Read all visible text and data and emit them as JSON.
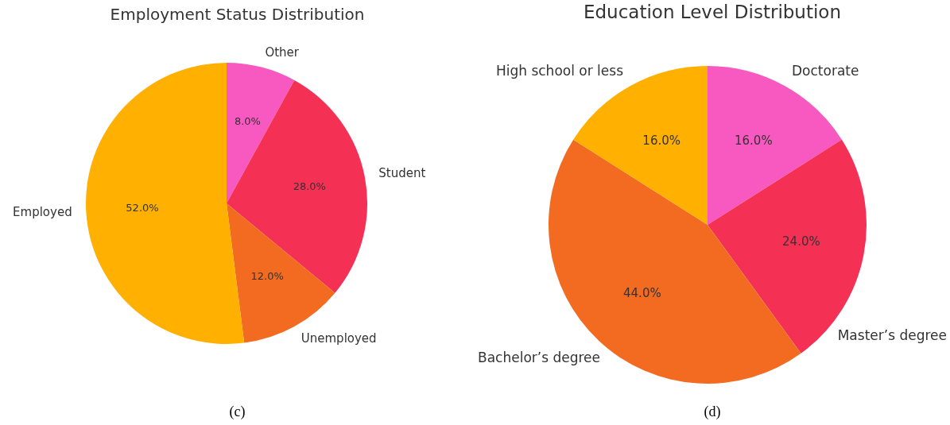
{
  "chart_data": [
    {
      "type": "pie",
      "title": "Employment Status Distribution",
      "categories": [
        "Other",
        "Student",
        "Unemployed",
        "Employed"
      ],
      "values": [
        8,
        28,
        12,
        52
      ],
      "colors": [
        "#f859c0",
        "#f43154",
        "#f26b21",
        "#ffb000"
      ],
      "value_labels": [
        "8.0%",
        "28.0%",
        "12.0%",
        "52.0%"
      ],
      "annotations": [
        "(c)"
      ]
    },
    {
      "type": "pie",
      "title": "Education Level Distribution",
      "categories": [
        "Doctorate",
        "Master’s degree",
        "Bachelor’s degree",
        "High school or less"
      ],
      "values": [
        16,
        24,
        44,
        16
      ],
      "colors": [
        "#f859c0",
        "#f43154",
        "#f26b21",
        "#ffb000"
      ],
      "value_labels": [
        "16.0%",
        "24.0%",
        "44.0%",
        "16.0%"
      ],
      "annotations": [
        "(d)"
      ]
    }
  ]
}
